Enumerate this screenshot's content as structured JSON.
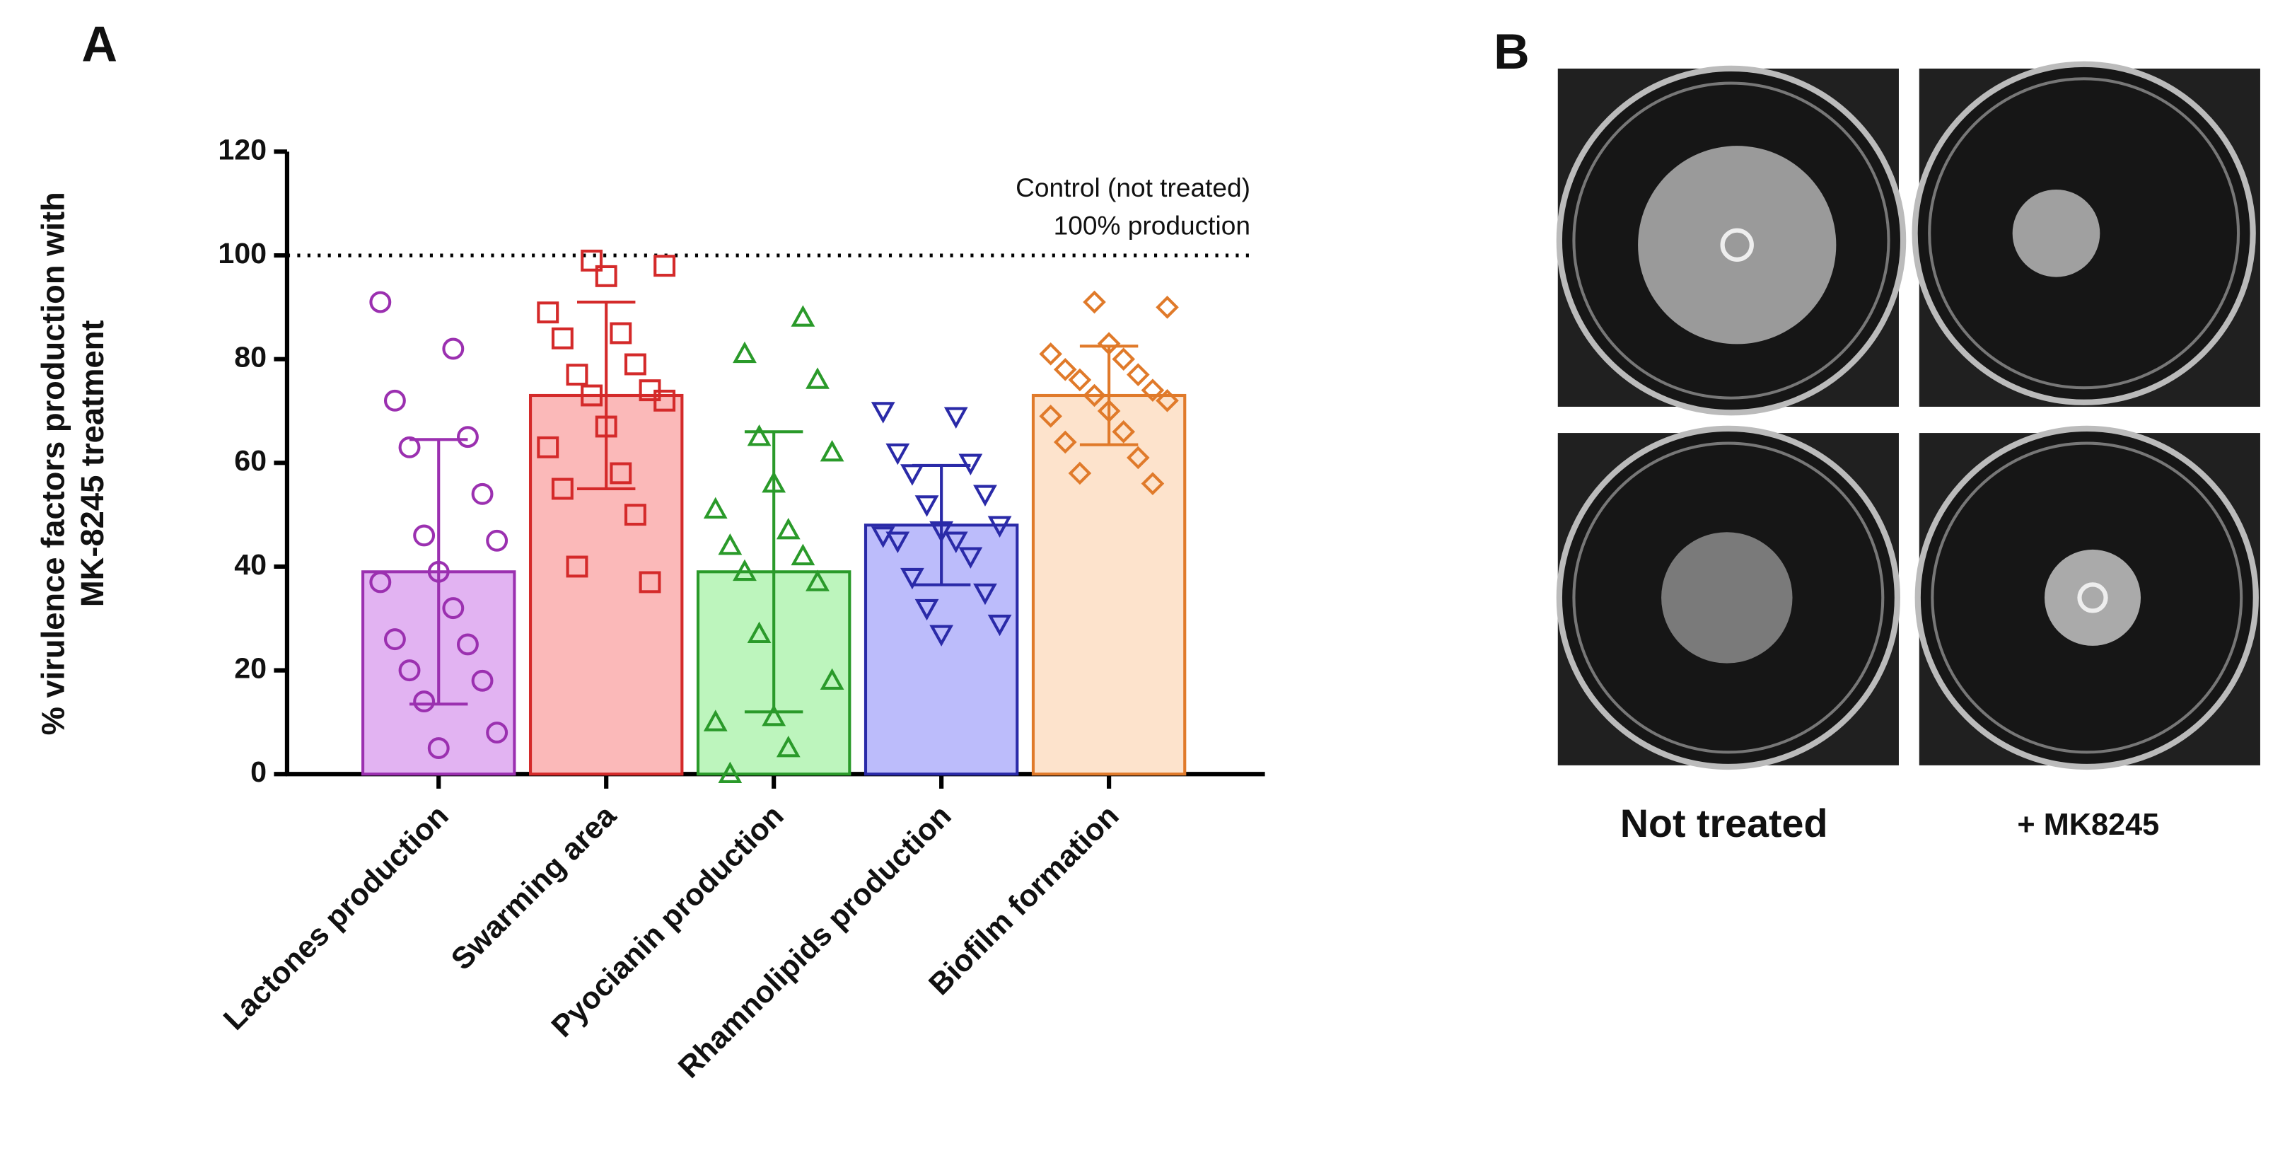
{
  "chart_data": {
    "type": "bar",
    "panel_label": "A",
    "ylabel": [
      "% virulence factors production with",
      "MK-8245 treatment"
    ],
    "categories": [
      "Lactones production",
      "Swarming area",
      "Pyocianin production",
      "Rhamnolipids production",
      "Biofilm formation"
    ],
    "values": [
      39,
      73,
      39,
      48,
      73
    ],
    "errors": [
      25.5,
      18,
      27,
      11.5,
      9.5
    ],
    "points": [
      [
        91,
        82,
        72,
        65,
        63,
        54,
        46,
        45,
        39,
        37,
        32,
        26,
        25,
        20,
        18,
        14,
        8,
        5
      ],
      [
        99,
        98,
        96,
        89,
        85,
        84,
        79,
        77,
        74,
        73,
        72,
        67,
        63,
        58,
        55,
        50,
        40,
        37
      ],
      [
        88,
        81,
        76,
        65,
        62,
        56,
        51,
        47,
        44,
        42,
        39,
        37,
        27,
        18,
        11,
        10,
        5,
        0
      ],
      [
        70,
        69,
        62,
        60,
        58,
        54,
        52,
        48,
        47,
        46,
        45,
        45,
        42,
        38,
        35,
        32,
        29,
        27
      ],
      [
        91,
        90,
        83,
        81,
        80,
        78,
        77,
        76,
        74,
        73,
        72,
        70,
        69,
        66,
        64,
        61,
        58,
        56
      ]
    ],
    "colors": [
      "#9b30b0",
      "#d42a2a",
      "#2a9a2a",
      "#2a2aa8",
      "#e07a2a"
    ],
    "fills": [
      "#e2b3f2",
      "#fbb9b9",
      "#bdf5bd",
      "#bcbcfb",
      "#fde3cc"
    ],
    "markers": [
      "circle",
      "square",
      "triangle",
      "triangle-down",
      "diamond"
    ],
    "ylim": [
      0,
      120
    ],
    "yticks": [
      0,
      20,
      40,
      60,
      80,
      100,
      120
    ],
    "reference_line": {
      "value": 100,
      "label": [
        "Control (not treated)",
        "100% production"
      ]
    }
  },
  "panel_b": {
    "label": "B",
    "captions": [
      "Not treated",
      "+ MK8245"
    ]
  }
}
